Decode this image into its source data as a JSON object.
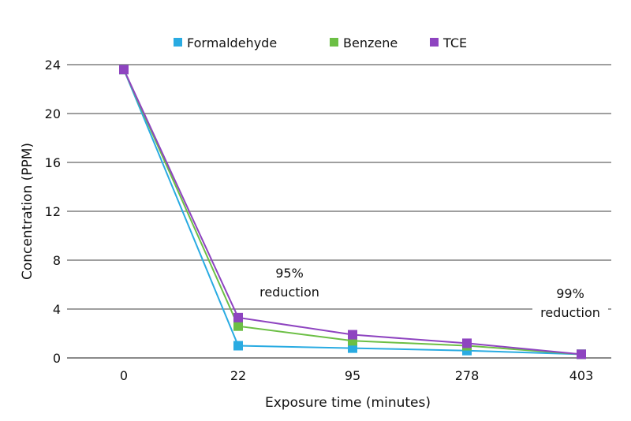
{
  "chart_data": {
    "type": "line",
    "title": "",
    "xlabel": "Exposure time (minutes)",
    "ylabel": "Concentration (PPM)",
    "categories": [
      "0",
      "22",
      "95",
      "278",
      "403"
    ],
    "ylim": [
      0,
      24
    ],
    "yticks": [
      0,
      4,
      8,
      12,
      16,
      20,
      24
    ],
    "grid": true,
    "legend": "top",
    "series": [
      {
        "name": "Formaldehyde",
        "color": "#29abe2",
        "values": [
          23.6,
          1.0,
          0.8,
          0.6,
          0.3
        ]
      },
      {
        "name": "Benzene",
        "color": "#6cbf45",
        "values": [
          23.6,
          2.6,
          1.4,
          1.0,
          0.3
        ]
      },
      {
        "name": "TCE",
        "color": "#8e44c0",
        "values": [
          23.6,
          3.3,
          1.9,
          1.2,
          0.3
        ]
      }
    ],
    "annotations": [
      {
        "line1": "95%",
        "line2": "reduction",
        "category": "22"
      },
      {
        "line1": "99%",
        "line2": "reduction",
        "category": "403"
      }
    ]
  }
}
